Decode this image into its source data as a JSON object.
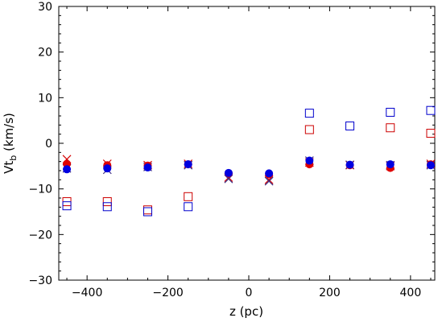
{
  "chart_data": {
    "type": "scatter",
    "title": "",
    "xlabel": "z (pc)",
    "ylabel_main": "Vt",
    "ylabel_sub": "b",
    "ylabel_unit": " (km/s)",
    "xlim": [
      -470,
      460
    ],
    "ylim": [
      -30,
      30
    ],
    "xticks": [
      -400,
      -200,
      0,
      200,
      400
    ],
    "yticks": [
      -30,
      -20,
      -10,
      0,
      10,
      20,
      30
    ],
    "xtick_labels": [
      "−400",
      "−200",
      "0",
      "200",
      "400"
    ],
    "ytick_labels": [
      "−30",
      "−20",
      "−10",
      "0",
      "10",
      "20",
      "30"
    ],
    "grid": false,
    "legend": "none",
    "series": [
      {
        "marker": "cross",
        "color": "#d40000",
        "x": [
          -450,
          -350,
          -250,
          -150,
          -50,
          50,
          150,
          250,
          350,
          450
        ],
        "y": [
          -3.5,
          -4.5,
          -4.8,
          -4.5,
          -7.5,
          -8.0,
          -4.2,
          -4.8,
          -5.0,
          -4.5
        ]
      },
      {
        "marker": "cross",
        "color": "#3a2a80",
        "x": [
          -450,
          -350,
          -250,
          -150,
          -50,
          50,
          150,
          250,
          350,
          450
        ],
        "y": [
          -5.5,
          -5.8,
          -5.2,
          -4.8,
          -7.8,
          -8.3,
          -3.8,
          -4.7,
          -4.8,
          -4.8
        ]
      },
      {
        "marker": "filled-circle",
        "color": "#e00000",
        "x": [
          -450,
          -350,
          -250,
          -150,
          -50,
          50,
          150,
          250,
          350,
          450
        ],
        "y": [
          -4.5,
          -4.8,
          -4.9,
          -4.6,
          -6.6,
          -6.8,
          -4.6,
          -4.8,
          -5.4,
          -4.6
        ]
      },
      {
        "marker": "filled-circle",
        "color": "#0000e0",
        "x": [
          -450,
          -350,
          -250,
          -150,
          -50,
          50,
          150,
          250,
          350,
          450
        ],
        "y": [
          -5.7,
          -5.5,
          -5.3,
          -4.6,
          -6.5,
          -6.6,
          -3.8,
          -4.7,
          -4.6,
          -4.8
        ]
      },
      {
        "marker": "open-square",
        "color": "#cc0000",
        "x": [
          -450,
          -350,
          -250,
          -150,
          150,
          350,
          450
        ],
        "y": [
          -12.8,
          -12.8,
          -14.6,
          -11.7,
          3.0,
          3.4,
          2.2
        ]
      },
      {
        "marker": "open-square",
        "color": "#0000cc",
        "x": [
          -450,
          -350,
          -250,
          -150,
          150,
          250,
          350,
          450
        ],
        "y": [
          -13.7,
          -13.9,
          -15.0,
          -13.9,
          6.6,
          3.8,
          6.8,
          7.2
        ]
      }
    ]
  }
}
